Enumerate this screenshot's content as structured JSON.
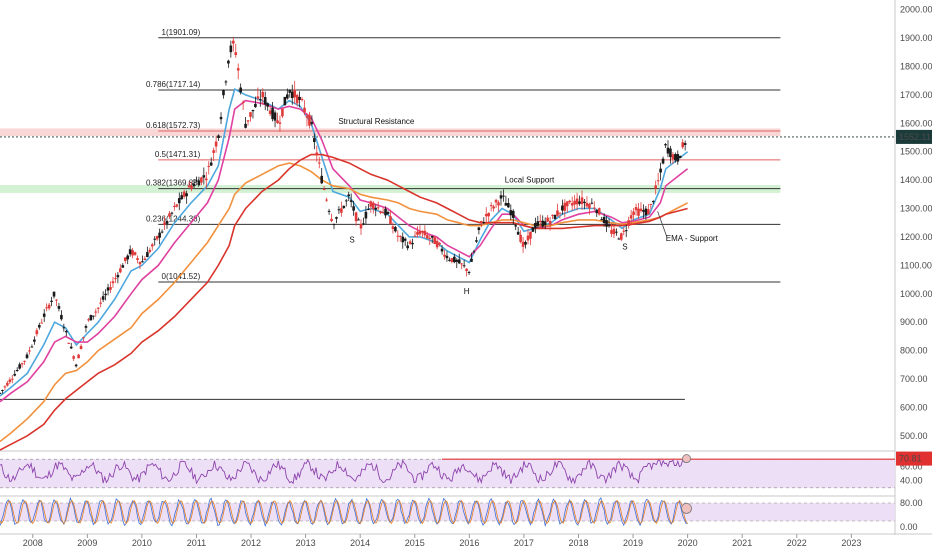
{
  "chart_data": {
    "type": "candlestick",
    "title": "",
    "x_axis": {
      "tick_labels": [
        "2008",
        "2009",
        "2010",
        "2011",
        "2012",
        "2013",
        "2014",
        "2015",
        "2016",
        "2017",
        "2018",
        "2019",
        "2020",
        "2021",
        "2022",
        "2023"
      ],
      "range": [
        2007.4,
        2023.8
      ]
    },
    "y_axis": {
      "tick_labels": [
        "500.00",
        "600.00",
        "700.00",
        "800.00",
        "900.00",
        "1000.00",
        "1100.00",
        "1200.00",
        "1300.00",
        "1400.00",
        "1500.00",
        "1600.00",
        "1700.00",
        "1800.00",
        "1900.00",
        "2000.00"
      ],
      "range": [
        450,
        2020
      ],
      "scale": "linear",
      "side": "right"
    },
    "last_price": {
      "label": "1552.11",
      "value": 1552.11,
      "color": "#1b3b3a"
    },
    "fib_levels": [
      {
        "label": "1(1901.09)",
        "value": 1901.09
      },
      {
        "label": "0.786(1717.14)",
        "value": 1717.14
      },
      {
        "label": "0.618(1572.73)",
        "value": 1572.73
      },
      {
        "label": "0.5(1471.31)",
        "value": 1471.31
      },
      {
        "label": "0.382(1369.88)",
        "value": 1369.88
      },
      {
        "label": "0.236(1244.38)",
        "value": 1244.38
      },
      {
        "label": "0(1041.52)",
        "value": 1041.52
      }
    ],
    "extra_hline": 628,
    "zones": [
      {
        "name": "Structural Resistance",
        "low": 1555,
        "high": 1582,
        "color": "#f4a6a6"
      },
      {
        "name": "Local Support",
        "low": 1355,
        "high": 1383,
        "color": "#9ee09e"
      }
    ],
    "annotations": [
      {
        "text": "Structural Resistance",
        "x": 2013.6,
        "y": 1598
      },
      {
        "text": "Local Support",
        "x": 2016.65,
        "y": 1392
      },
      {
        "text": "S",
        "x": 2013.85,
        "y": 1180
      },
      {
        "text": "H",
        "x": 2015.95,
        "y": 1000
      },
      {
        "text": "S",
        "x": 2018.85,
        "y": 1155
      },
      {
        "text": "EMA - Support",
        "x": 2019.6,
        "y": 1185
      }
    ],
    "price_series": {
      "x": [
        2007.4,
        2007.6,
        2007.9,
        2008.2,
        2008.4,
        2008.6,
        2008.8,
        2009.0,
        2009.2,
        2009.5,
        2009.8,
        2010.0,
        2010.3,
        2010.6,
        2010.9,
        2011.2,
        2011.4,
        2011.6,
        2011.7,
        2011.9,
        2012.2,
        2012.5,
        2012.7,
        2012.9,
        2013.1,
        2013.3,
        2013.5,
        2013.8,
        2014.0,
        2014.2,
        2014.5,
        2014.7,
        2014.9,
        2015.1,
        2015.4,
        2015.6,
        2015.8,
        2016.0,
        2016.2,
        2016.4,
        2016.6,
        2016.8,
        2017.0,
        2017.2,
        2017.5,
        2017.7,
        2018.0,
        2018.3,
        2018.6,
        2018.8,
        2019.0,
        2019.3,
        2019.5,
        2019.6,
        2019.8,
        2020.0
      ],
      "y": [
        650,
        700,
        780,
        920,
        1000,
        870,
        750,
        900,
        950,
        1050,
        1150,
        1110,
        1200,
        1300,
        1380,
        1420,
        1560,
        1850,
        1880,
        1600,
        1700,
        1600,
        1720,
        1680,
        1600,
        1400,
        1250,
        1340,
        1230,
        1320,
        1280,
        1200,
        1170,
        1220,
        1180,
        1130,
        1110,
        1080,
        1240,
        1300,
        1340,
        1280,
        1160,
        1240,
        1260,
        1300,
        1330,
        1310,
        1220,
        1200,
        1290,
        1290,
        1420,
        1520,
        1470,
        1552
      ]
    },
    "moving_averages": [
      {
        "color": "#4ea8de",
        "y": [
          640,
          670,
          720,
          820,
          900,
          880,
          820,
          860,
          900,
          980,
          1080,
          1100,
          1160,
          1250,
          1320,
          1380,
          1450,
          1650,
          1720,
          1700,
          1680,
          1650,
          1680,
          1660,
          1600,
          1480,
          1360,
          1340,
          1290,
          1300,
          1280,
          1240,
          1200,
          1200,
          1180,
          1150,
          1130,
          1110,
          1190,
          1260,
          1300,
          1280,
          1220,
          1230,
          1250,
          1280,
          1300,
          1300,
          1260,
          1230,
          1260,
          1280,
          1370,
          1440,
          1470,
          1500
        ]
      },
      {
        "color": "#e040a0",
        "y": [
          620,
          650,
          690,
          760,
          830,
          850,
          830,
          830,
          860,
          920,
          1000,
          1050,
          1100,
          1180,
          1250,
          1320,
          1400,
          1550,
          1650,
          1680,
          1670,
          1650,
          1660,
          1650,
          1620,
          1540,
          1440,
          1380,
          1330,
          1320,
          1300,
          1270,
          1240,
          1220,
          1200,
          1170,
          1150,
          1130,
          1170,
          1230,
          1280,
          1280,
          1240,
          1230,
          1240,
          1260,
          1280,
          1290,
          1270,
          1250,
          1255,
          1270,
          1320,
          1380,
          1410,
          1440
        ]
      },
      {
        "color": "#f2913d",
        "y": [
          480,
          510,
          560,
          620,
          680,
          720,
          730,
          760,
          800,
          840,
          880,
          930,
          980,
          1040,
          1110,
          1180,
          1240,
          1300,
          1350,
          1390,
          1420,
          1450,
          1460,
          1450,
          1430,
          1400,
          1380,
          1370,
          1350,
          1340,
          1330,
          1320,
          1300,
          1290,
          1280,
          1260,
          1250,
          1240,
          1240,
          1250,
          1260,
          1260,
          1250,
          1240,
          1240,
          1250,
          1260,
          1260,
          1250,
          1245,
          1250,
          1260,
          1270,
          1280,
          1300,
          1320
        ]
      },
      {
        "color": "#d9342b",
        "y": [
          450,
          470,
          500,
          540,
          590,
          630,
          660,
          690,
          720,
          750,
          790,
          830,
          870,
          920,
          980,
          1040,
          1100,
          1170,
          1240,
          1300,
          1360,
          1400,
          1440,
          1470,
          1490,
          1490,
          1480,
          1460,
          1440,
          1420,
          1400,
          1380,
          1360,
          1340,
          1320,
          1300,
          1280,
          1260,
          1250,
          1250,
          1250,
          1250,
          1240,
          1230,
          1230,
          1230,
          1235,
          1240,
          1240,
          1240,
          1245,
          1255,
          1270,
          1280,
          1290,
          1300
        ]
      }
    ],
    "rsi": {
      "label": "70.81",
      "value": 70.81,
      "tick_labels": [
        "60.00",
        "40.00"
      ],
      "range": [
        20,
        80
      ],
      "bands": [
        70,
        30
      ],
      "red_line": {
        "from_x": 2015.5,
        "value": 70
      }
    },
    "stoch": {
      "tick_labels": [
        "80.00",
        "0.00"
      ],
      "range": [
        -10,
        100
      ],
      "bands": [
        80,
        20
      ]
    }
  }
}
